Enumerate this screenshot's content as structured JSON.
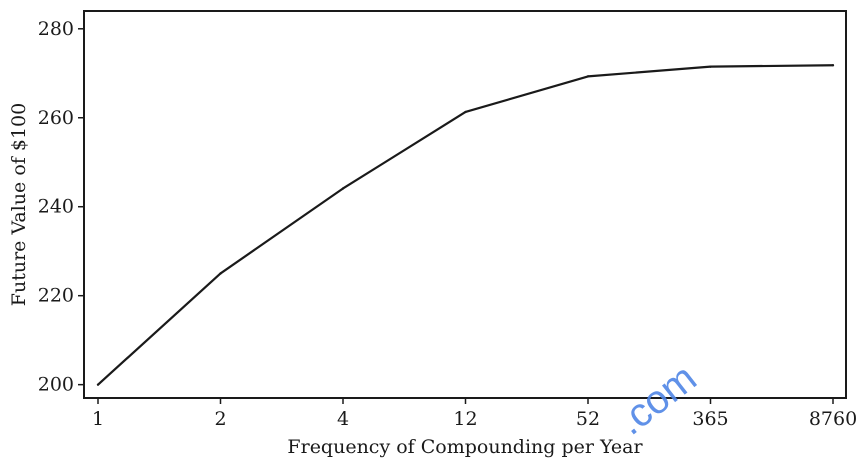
{
  "chart_data": {
    "type": "line",
    "title": "",
    "xlabel": "Frequency of Compounding per Year",
    "ylabel": "Future Value of $100",
    "categories": [
      "1",
      "2",
      "4",
      "12",
      "52",
      "365",
      "8760"
    ],
    "series": [
      {
        "values": [
          200.0,
          225.0,
          244.1,
          261.3,
          269.3,
          271.5,
          271.8
        ]
      }
    ],
    "ylim": [
      197,
      284
    ],
    "yticks": [
      200,
      220,
      240,
      260,
      280
    ],
    "grid": false,
    "legend": "none",
    "line_color": "#1a1a1a"
  },
  "watermark": {
    "text": ".com",
    "color": "#4f86e6"
  }
}
